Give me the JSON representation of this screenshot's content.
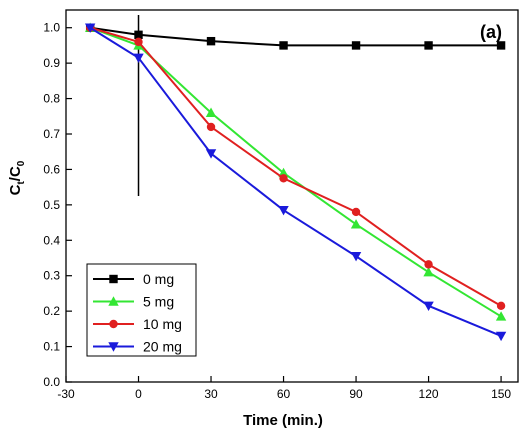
{
  "chart_data": {
    "type": "line",
    "panel_label": "(a)",
    "xlabel": "Time (min.)",
    "ylabel": "C_t/C_0",
    "xlim": [
      -30,
      157
    ],
    "ylim": [
      0,
      1.05
    ],
    "xticks": [
      -30,
      0,
      30,
      60,
      90,
      120,
      150
    ],
    "yticks": [
      0.0,
      0.1,
      0.2,
      0.3,
      0.4,
      0.5,
      0.6,
      0.7,
      0.8,
      0.9,
      1.0
    ],
    "ytick_labels": [
      "0.0",
      "0.1",
      "0.2",
      "0.3",
      "0.4",
      "0.5",
      "0.6",
      "0.7",
      "0.8",
      "0.9",
      "1.0"
    ],
    "vertical_marker_x": 0,
    "legend_position": "bottom-left",
    "grid": false,
    "series": [
      {
        "name": "0 mg",
        "color": "#000000",
        "marker": "square",
        "x": [
          -20,
          0,
          30,
          60,
          90,
          120,
          150
        ],
        "values": [
          1.0,
          0.98,
          0.962,
          0.95,
          0.95,
          0.95,
          0.95
        ]
      },
      {
        "name": "5 mg",
        "color": "#33e633",
        "marker": "triangle-up",
        "x": [
          -20,
          0,
          30,
          60,
          90,
          120,
          150
        ],
        "values": [
          1.0,
          0.95,
          0.76,
          0.59,
          0.445,
          0.31,
          0.185
        ]
      },
      {
        "name": "10 mg",
        "color": "#e02020",
        "marker": "circle",
        "x": [
          -20,
          0,
          30,
          60,
          90,
          120,
          150
        ],
        "values": [
          1.0,
          0.96,
          0.72,
          0.575,
          0.48,
          0.332,
          0.215
        ]
      },
      {
        "name": "20 mg",
        "color": "#1a1adb",
        "marker": "triangle-down",
        "x": [
          -20,
          0,
          30,
          60,
          90,
          120,
          150
        ],
        "values": [
          1.0,
          0.915,
          0.645,
          0.485,
          0.355,
          0.215,
          0.13
        ]
      }
    ]
  }
}
